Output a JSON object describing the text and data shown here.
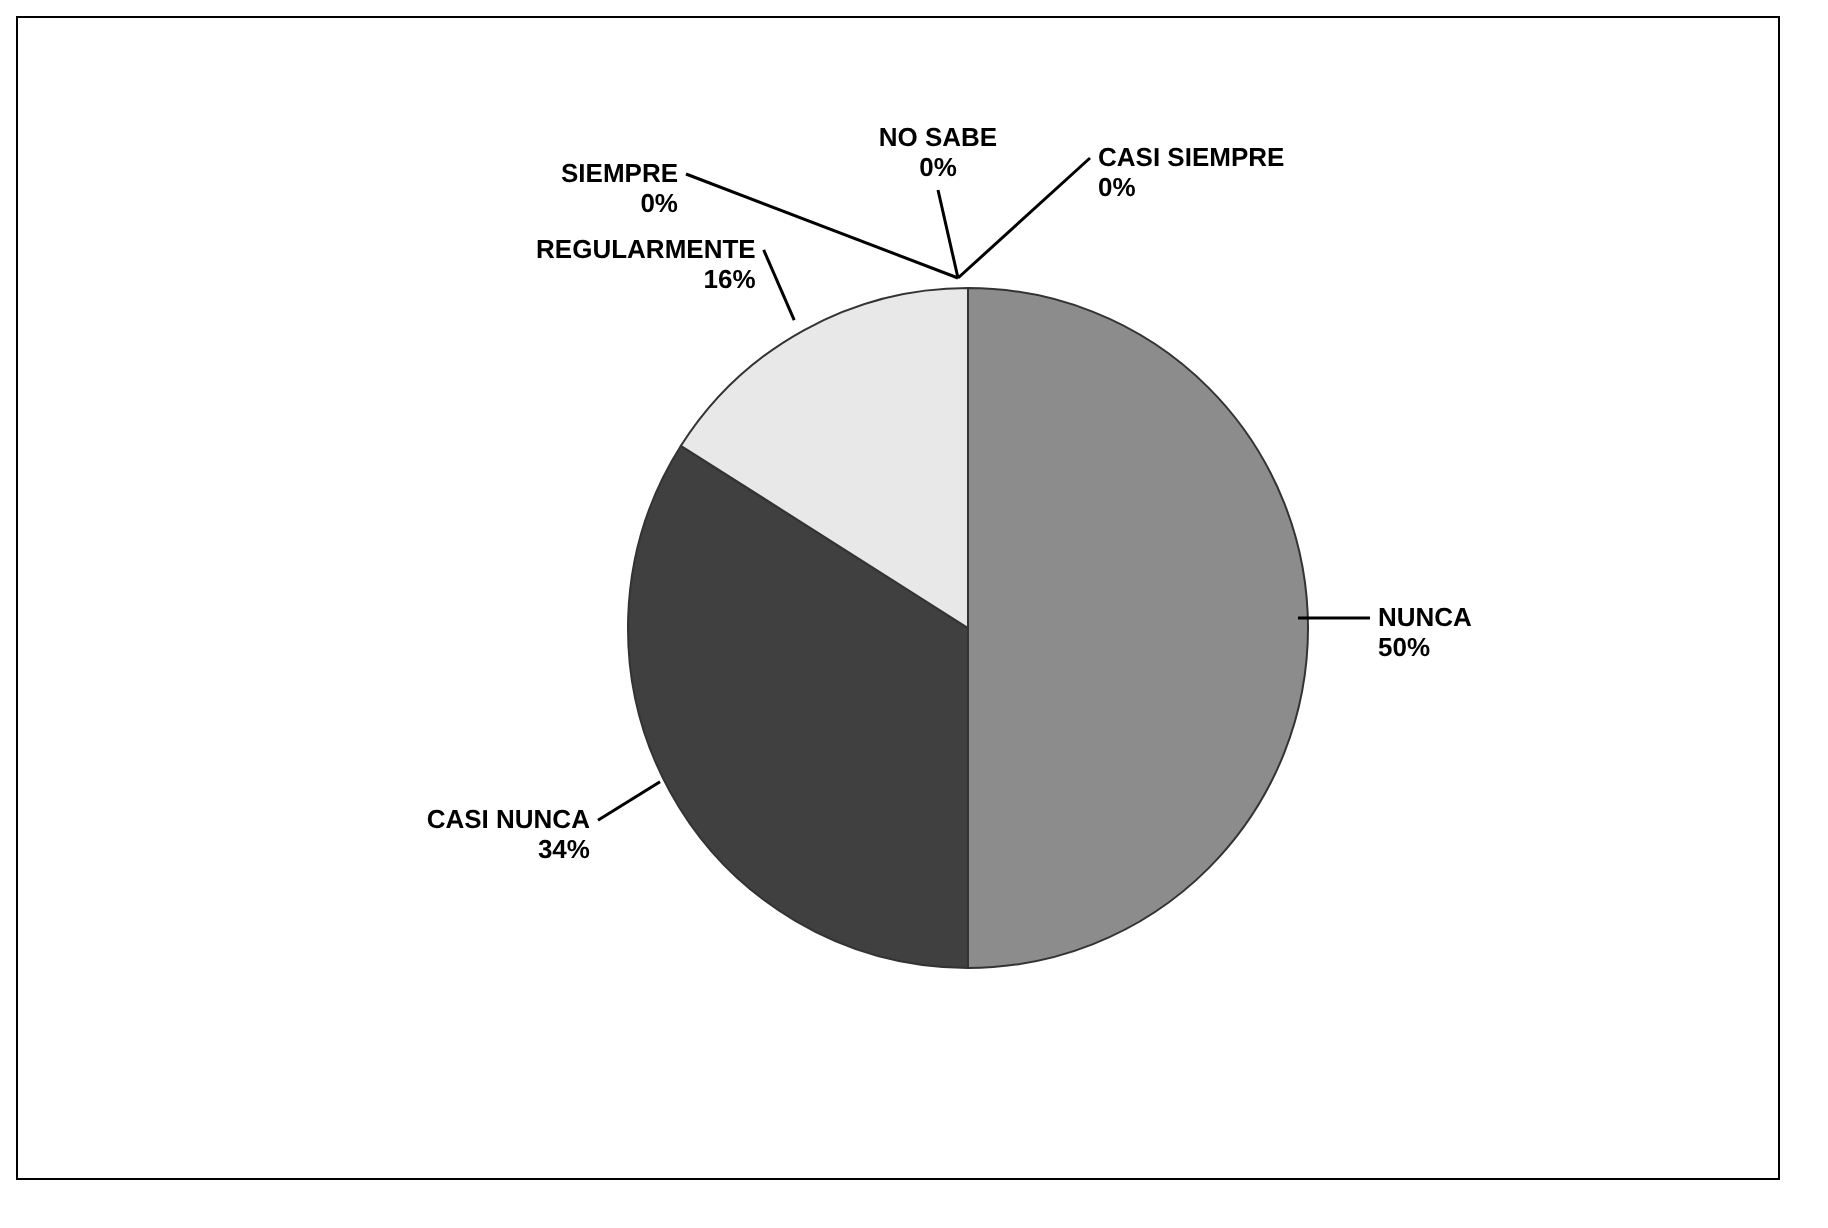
{
  "chart_data": {
    "type": "pie",
    "categories": [
      "CASI SIEMPRE",
      "NUNCA",
      "CASI NUNCA",
      "REGULARMENTE",
      "SIEMPRE",
      "NO SABE"
    ],
    "values": [
      0,
      50,
      34,
      16,
      0,
      0
    ],
    "colors": [
      "#b0b0b0",
      "#8c8c8c",
      "#404040",
      "#e8e8e8",
      "#cccccc",
      "#666666"
    ],
    "value_labels": [
      "0%",
      "50%",
      "34%",
      "16%",
      "0%",
      "0%"
    ]
  }
}
